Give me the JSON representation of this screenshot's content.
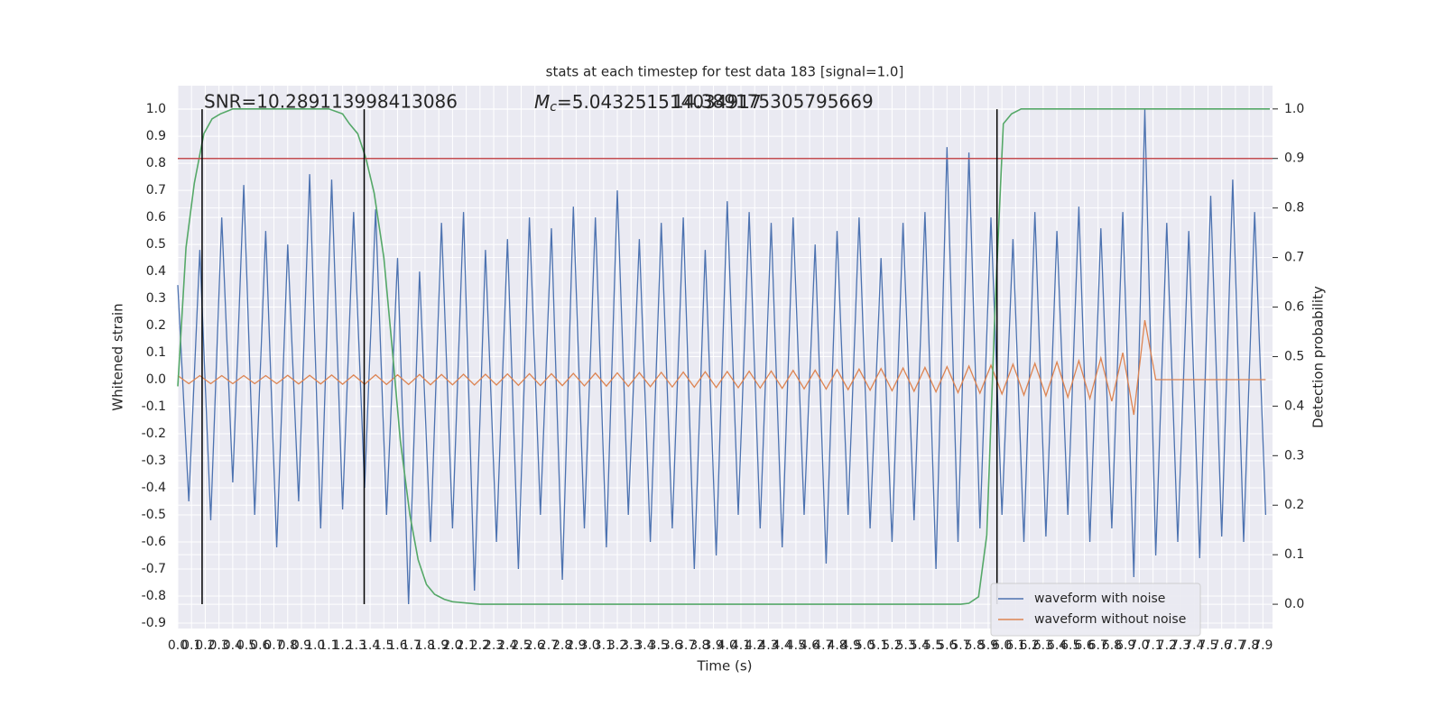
{
  "chart_data": {
    "type": "line",
    "title": "stats at each timestep for test data 183 [signal=1.0]",
    "xlabel": "Time (s)",
    "ylabel": "Whitened strain",
    "y2label": "Detection probability",
    "annotations": [
      {
        "text": "SNR=10.289113998413086"
      },
      {
        "symbol": "M",
        "subscript": "c",
        "text": "=5.043251514034917"
      },
      {
        "text": "14.389175305795669"
      }
    ],
    "xlim": [
      0,
      7.97
    ],
    "ylim": [
      -0.92,
      1.087
    ],
    "y2lim": [
      -0.049,
      1.047
    ],
    "xticks": [
      {
        "value": 0,
        "label": "0.0"
      },
      0.1,
      0.2,
      0.3,
      0.4,
      0.5,
      0.6,
      0.7,
      0.8,
      0.9,
      {
        "value": 1,
        "label": "1.0"
      },
      1.1,
      1.2,
      1.3,
      1.4,
      1.5,
      1.6,
      1.7,
      1.8,
      1.9,
      {
        "value": 2,
        "label": "2.0"
      },
      2.1,
      2.2,
      2.3,
      2.4,
      2.5,
      2.6,
      2.7,
      2.8,
      2.9,
      {
        "value": 3,
        "label": "3.0"
      },
      3.1,
      3.2,
      3.3,
      3.4,
      3.5,
      3.6,
      3.7,
      3.8,
      3.9,
      {
        "value": 4,
        "label": "4.0"
      },
      4.1,
      4.2,
      4.3,
      4.4,
      4.5,
      4.6,
      4.7,
      4.8,
      4.9,
      {
        "value": 5,
        "label": "5.0"
      },
      5.1,
      5.2,
      5.3,
      5.4,
      5.5,
      5.6,
      5.7,
      5.8,
      5.9,
      {
        "value": 6,
        "label": "6.0"
      },
      6.1,
      6.2,
      6.3,
      6.4,
      6.5,
      6.6,
      6.7,
      6.8,
      6.9,
      {
        "value": 7,
        "label": "7.0"
      },
      7.1,
      7.2,
      7.3,
      7.4,
      7.5,
      7.6,
      7.7,
      7.8,
      7.9
    ],
    "yticks": [
      -0.9,
      -0.8,
      -0.7,
      -0.6,
      -0.5,
      -0.4,
      -0.3,
      -0.2,
      -0.1,
      {
        "value": 0,
        "label": "0.0"
      },
      0.1,
      0.2,
      0.3,
      0.4,
      0.5,
      0.6,
      0.7,
      0.8,
      0.9,
      {
        "value": 1,
        "label": "1.0"
      }
    ],
    "y2ticks": [
      {
        "value": 0,
        "label": "0.0"
      },
      0.1,
      0.2,
      0.3,
      0.4,
      0.5,
      0.6,
      0.7,
      0.8,
      0.9,
      {
        "value": 1,
        "label": "1.0"
      }
    ],
    "grid": true,
    "legend": "lower right",
    "x": [
      0,
      0.08,
      0.16,
      0.24,
      0.32,
      0.4,
      0.48,
      0.56,
      0.64,
      0.72,
      0.8,
      0.88,
      0.96,
      1.04,
      1.12,
      1.2,
      1.28,
      1.36,
      1.44,
      1.52,
      1.6,
      1.68,
      1.76,
      1.84,
      1.92,
      2,
      2.08,
      2.16,
      2.24,
      2.32,
      2.4,
      2.48,
      2.56,
      2.64,
      2.72,
      2.8,
      2.88,
      2.96,
      3.04,
      3.12,
      3.2,
      3.28,
      3.36,
      3.44,
      3.52,
      3.6,
      3.68,
      3.76,
      3.84,
      3.92,
      4,
      4.08,
      4.16,
      4.24,
      4.32,
      4.4,
      4.48,
      4.56,
      4.64,
      4.72,
      4.8,
      4.88,
      4.96,
      5.04,
      5.12,
      5.2,
      5.28,
      5.36,
      5.44,
      5.52,
      5.6,
      5.68,
      5.76,
      5.84,
      5.92,
      6,
      6.08,
      6.16,
      6.24,
      6.32,
      6.4,
      6.48,
      6.56,
      6.64,
      6.72,
      6.8,
      6.88,
      6.96,
      7.04,
      7.12,
      7.2,
      7.28,
      7.36,
      7.44,
      7.52,
      7.6,
      7.68,
      7.76,
      7.84,
      7.92
    ],
    "series": [
      {
        "name": "waveform with noise",
        "color": "#4c72b0",
        "values": [
          0.35,
          -0.45,
          0.48,
          -0.52,
          0.6,
          -0.38,
          0.72,
          -0.5,
          0.55,
          -0.62,
          0.5,
          -0.45,
          0.76,
          -0.55,
          0.74,
          -0.48,
          0.62,
          -0.4,
          0.63,
          -0.5,
          0.45,
          -0.83,
          0.4,
          -0.6,
          0.58,
          -0.55,
          0.62,
          -0.78,
          0.48,
          -0.6,
          0.52,
          -0.7,
          0.6,
          -0.5,
          0.56,
          -0.74,
          0.64,
          -0.55,
          0.6,
          -0.62,
          0.7,
          -0.5,
          0.52,
          -0.6,
          0.58,
          -0.55,
          0.6,
          -0.7,
          0.48,
          -0.65,
          0.66,
          -0.5,
          0.62,
          -0.55,
          0.58,
          -0.62,
          0.6,
          -0.5,
          0.5,
          -0.68,
          0.55,
          -0.5,
          0.6,
          -0.55,
          0.45,
          -0.6,
          0.58,
          -0.52,
          0.62,
          -0.7,
          0.86,
          -0.6,
          0.84,
          -0.55,
          0.6,
          -0.5,
          0.52,
          -0.6,
          0.62,
          -0.58,
          0.55,
          -0.5,
          0.64,
          -0.6,
          0.56,
          -0.55,
          0.62,
          -0.73,
          1.0,
          -0.65,
          0.58,
          -0.6,
          0.55,
          -0.66,
          0.68,
          -0.58,
          0.74,
          -0.6,
          0.62,
          -0.5
        ]
      },
      {
        "name": "waveform without noise",
        "color": "#dd8452",
        "values": [
          0.015,
          -0.015,
          0.015,
          -0.015,
          0.015,
          -0.015,
          0.015,
          -0.015,
          0.015,
          -0.015,
          0.016,
          -0.016,
          0.016,
          -0.016,
          0.017,
          -0.017,
          0.017,
          -0.017,
          0.018,
          -0.018,
          0.018,
          -0.018,
          0.019,
          -0.019,
          0.019,
          -0.019,
          0.02,
          -0.02,
          0.02,
          -0.02,
          0.021,
          -0.021,
          0.022,
          -0.022,
          0.022,
          -0.022,
          0.023,
          -0.023,
          0.024,
          -0.024,
          0.025,
          -0.025,
          0.026,
          -0.026,
          0.027,
          -0.027,
          0.028,
          -0.028,
          0.029,
          -0.029,
          0.03,
          -0.03,
          0.031,
          -0.031,
          0.032,
          -0.032,
          0.034,
          -0.034,
          0.035,
          -0.035,
          0.037,
          -0.037,
          0.039,
          -0.039,
          0.041,
          -0.041,
          0.043,
          -0.043,
          0.045,
          -0.045,
          0.048,
          -0.048,
          0.05,
          -0.05,
          0.053,
          -0.053,
          0.057,
          -0.057,
          0.06,
          -0.06,
          0.065,
          -0.065,
          0.07,
          -0.07,
          0.08,
          -0.08,
          0.1,
          -0.13,
          0.22,
          0,
          0,
          0,
          0,
          0,
          0,
          0,
          0,
          0,
          0,
          0
        ]
      },
      {
        "color": "#55a868",
        "axis": "y2",
        "x": [
          0,
          0.06,
          0.12,
          0.19,
          0.25,
          0.31,
          0.4,
          1.1,
          1.2,
          1.25,
          1.31,
          1.37,
          1.43,
          1.5,
          1.56,
          1.62,
          1.69,
          1.75,
          1.81,
          1.87,
          1.94,
          2.0,
          2.2,
          5.7,
          5.76,
          5.83,
          5.89,
          5.95,
          6.01,
          6.07,
          6.14,
          7.95
        ],
        "values": [
          0.44,
          0.72,
          0.85,
          0.95,
          0.98,
          0.99,
          1.0,
          1.0,
          0.99,
          0.97,
          0.95,
          0.9,
          0.83,
          0.7,
          0.52,
          0.33,
          0.18,
          0.09,
          0.04,
          0.02,
          0.01,
          0.005,
          0.0,
          0.0,
          0.002,
          0.015,
          0.14,
          0.6,
          0.97,
          0.99,
          1.0,
          1.0
        ]
      }
    ],
    "hline": {
      "y": 0.9,
      "axis": "y2",
      "color": "#c44e52"
    },
    "vlines": {
      "x": [
        0.177,
        1.357,
        5.964
      ],
      "ymin": -0.83,
      "ymax": 1.0,
      "color": "#000000"
    }
  }
}
